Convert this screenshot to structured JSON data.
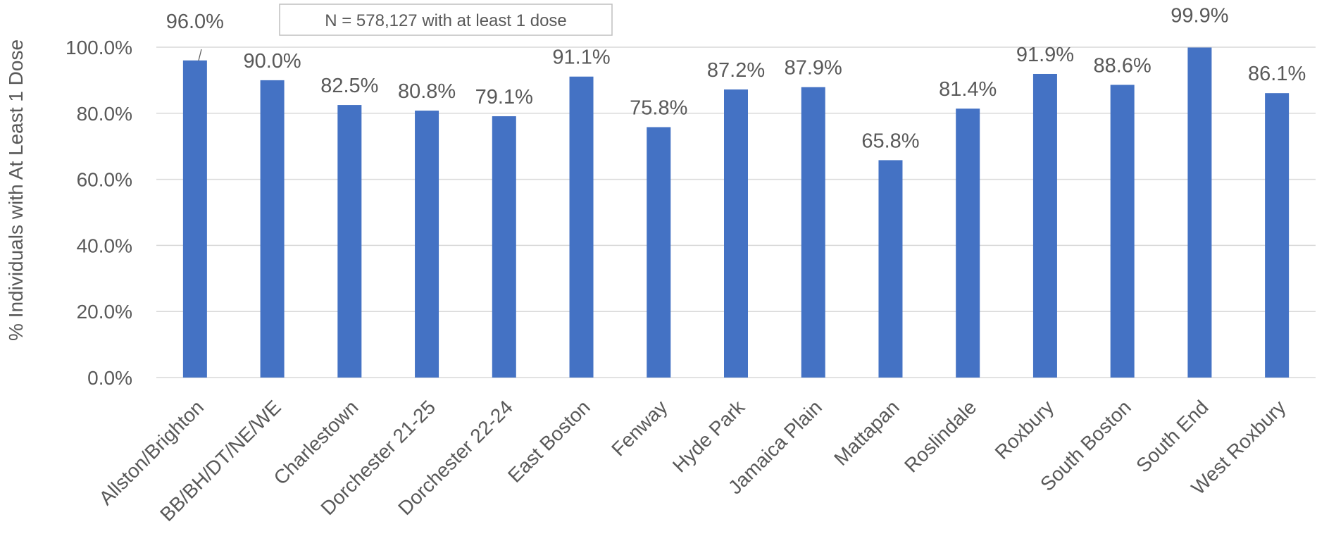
{
  "chart_data": {
    "type": "bar",
    "title": "",
    "xlabel": "",
    "ylabel": "% Individuals with At Least 1 Dose",
    "ylim": [
      0,
      100
    ],
    "y_ticks": [
      0,
      20,
      40,
      60,
      80,
      100
    ],
    "y_tick_labels": [
      "0.0%",
      "20.0%",
      "40.0%",
      "60.0%",
      "80.0%",
      "100.0%"
    ],
    "grid": "horizontal",
    "legend": "none",
    "annotation": "N = 578,127 with at least 1 dose",
    "categories": [
      "Allston/Brighton",
      "BB/BH/DT/NE/WE",
      "Charlestown",
      "Dorchester 21-25",
      "Dorchester 22-24",
      "East Boston",
      "Fenway",
      "Hyde Park",
      "Jamaica Plain",
      "Mattapan",
      "Roslindale",
      "Roxbury",
      "South Boston",
      "South End",
      "West Roxbury"
    ],
    "values": [
      96.0,
      90.0,
      82.5,
      80.8,
      79.1,
      91.1,
      75.8,
      87.2,
      87.9,
      65.8,
      81.4,
      91.9,
      88.6,
      99.9,
      86.1
    ],
    "data_labels": [
      "96.0%",
      "90.0%",
      "82.5%",
      "80.8%",
      "79.1%",
      "91.1%",
      "75.8%",
      "87.2%",
      "87.9%",
      "65.8%",
      "81.4%",
      "91.9%",
      "88.6%",
      "99.9%",
      "86.1%"
    ],
    "colors": {
      "bar": "#4472C4",
      "grid": "#D9D9D9",
      "text": "#595959",
      "note_border": "#BFBFBF"
    }
  }
}
